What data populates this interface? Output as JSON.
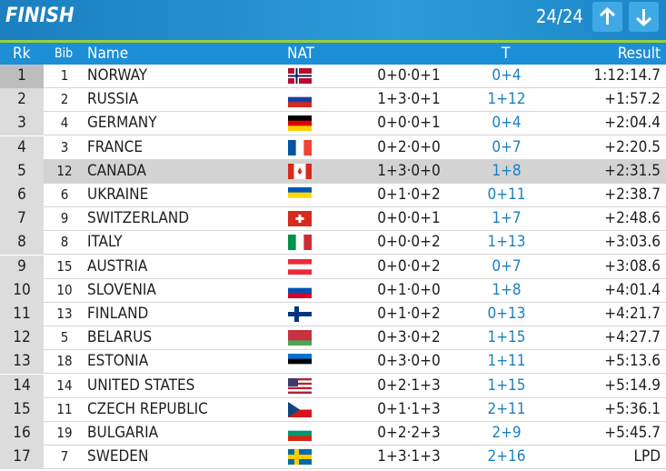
{
  "header": {
    "title": "FINISH",
    "counter": "24/24"
  },
  "table": {
    "columns": [
      "Rk",
      "Bib",
      "Name",
      "NAT",
      "T",
      "Result"
    ],
    "rows": [
      [
        "1",
        "1",
        "NORWAY",
        "0+0·0+1",
        "0+4",
        "1:12:14.7"
      ],
      [
        "2",
        "2",
        "RUSSIA",
        "1+3·0+1",
        "1+12",
        "+1:57.2"
      ],
      [
        "3",
        "4",
        "GERMANY",
        "0+0·0+1",
        "0+4",
        "+2:04.4"
      ],
      [
        "4",
        "3",
        "FRANCE",
        "0+2·0+0",
        "0+7",
        "+2:20.5"
      ],
      [
        "5",
        "12",
        "CANADA",
        "1+3·0+0",
        "1+8",
        "+2:31.5"
      ],
      [
        "6",
        "6",
        "UKRAINE",
        "0+1·0+2",
        "0+11",
        "+2:38.7"
      ],
      [
        "7",
        "9",
        "SWITZERLAND",
        "0+0·0+1",
        "1+7",
        "+2:48.6"
      ],
      [
        "8",
        "8",
        "ITALY",
        "0+0·0+2",
        "1+13",
        "+3:03.6"
      ],
      [
        "9",
        "15",
        "AUSTRIA",
        "0+0·0+2",
        "0+7",
        "+3:08.6"
      ],
      [
        "10",
        "10",
        "SLOVENIA",
        "0+1·0+0",
        "1+8",
        "+4:01.4"
      ],
      [
        "11",
        "13",
        "FINLAND",
        "0+1·0+2",
        "0+13",
        "+4:21.7"
      ],
      [
        "12",
        "5",
        "BELARUS",
        "0+3·0+2",
        "1+15",
        "+4:27.7"
      ],
      [
        "13",
        "18",
        "ESTONIA",
        "0+3·0+0",
        "1+11",
        "+5:13.6"
      ],
      [
        "14",
        "14",
        "UNITED STATES",
        "0+2·1+3",
        "1+15",
        "+5:14.9"
      ],
      [
        "15",
        "11",
        "CZECH REPUBLIC",
        "0+1·1+3",
        "2+11",
        "+5:36.1"
      ],
      [
        "16",
        "19",
        "BULGARIA",
        "0+2·2+3",
        "2+9",
        "+5:45.7"
      ],
      [
        "17",
        "7",
        "SWEDEN",
        "1+3·1+3",
        "2+16",
        "LPD"
      ]
    ]
  }
}
